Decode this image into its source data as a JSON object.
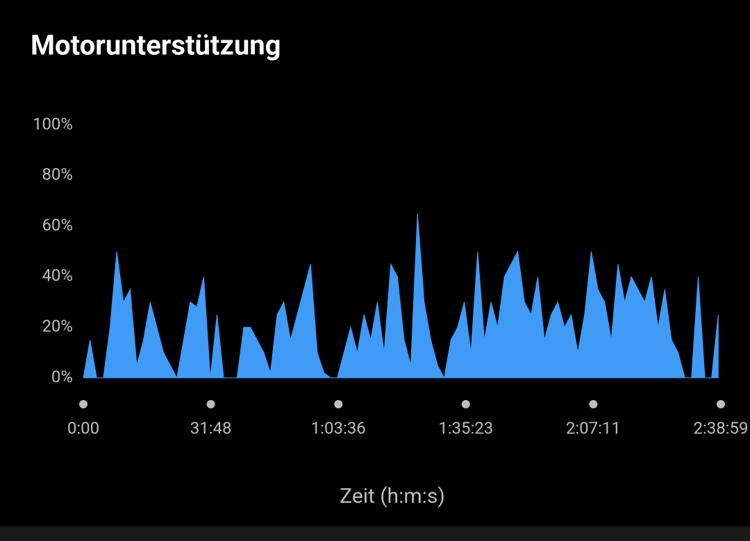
{
  "chart_data": {
    "type": "area",
    "title": "Motorunterstützung",
    "x_label": "Zeit (h:m:s)",
    "x": [
      0,
      100,
      200,
      300,
      400,
      500,
      600,
      700,
      800,
      900,
      1000,
      1100,
      1200,
      1300,
      1400,
      1500,
      1600,
      1700,
      1800,
      1900,
      2000,
      2100,
      2200,
      2300,
      2400,
      2500,
      2600,
      2700,
      2800,
      2900,
      3000,
      3100,
      3200,
      3300,
      3400,
      3500,
      3600,
      3700,
      3800,
      3900,
      4000,
      4100,
      4200,
      4300,
      4400,
      4500,
      4600,
      4700,
      4800,
      4900,
      5000,
      5100,
      5200,
      5300,
      5400,
      5500,
      5600,
      5700,
      5800,
      5900,
      6000,
      6100,
      6200,
      6300,
      6400,
      6500,
      6600,
      6700,
      6800,
      6900,
      7000,
      7100,
      7200,
      7300,
      7400,
      7500,
      7600,
      7700,
      7800,
      7900,
      8000,
      8100,
      8200,
      8300,
      8400,
      8500,
      8600,
      8700,
      8800,
      8900,
      9000,
      9100,
      9200,
      9300,
      9400,
      9500
    ],
    "series": [
      {
        "name": "Motorunterstützung",
        "color": "#3f9bf5",
        "values": [
          0,
          15,
          0,
          0,
          20,
          50,
          30,
          35,
          5,
          15,
          30,
          20,
          10,
          5,
          0,
          15,
          30,
          28,
          40,
          0,
          25,
          0,
          0,
          0,
          20,
          20,
          15,
          10,
          2,
          25,
          30,
          15,
          25,
          35,
          45,
          10,
          2,
          0,
          0,
          10,
          20,
          10,
          25,
          15,
          30,
          10,
          45,
          40,
          15,
          5,
          65,
          30,
          15,
          5,
          0,
          15,
          20,
          30,
          10,
          50,
          15,
          30,
          20,
          40,
          45,
          50,
          30,
          25,
          40,
          15,
          25,
          30,
          20,
          25,
          10,
          25,
          50,
          35,
          30,
          15,
          45,
          30,
          40,
          35,
          30,
          40,
          20,
          35,
          15,
          10,
          0,
          0,
          40,
          0,
          0,
          25
        ]
      }
    ],
    "xlim": [
      0,
      9539
    ],
    "xticks": [
      {
        "value": 0,
        "label": "0:00"
      },
      {
        "value": 1908,
        "label": "31:48"
      },
      {
        "value": 3816,
        "label": "1:03:36"
      },
      {
        "value": 5723,
        "label": "1:35:23"
      },
      {
        "value": 7631,
        "label": "2:07:11"
      },
      {
        "value": 9539,
        "label": "2:38:59"
      }
    ],
    "ylim": [
      0,
      100
    ],
    "yticks": [
      {
        "value": 0,
        "label": "0%"
      },
      {
        "value": 20,
        "label": "20%"
      },
      {
        "value": 40,
        "label": "40%"
      },
      {
        "value": 60,
        "label": "60%"
      },
      {
        "value": 80,
        "label": "80%"
      },
      {
        "value": 100,
        "label": "100%"
      }
    ]
  }
}
